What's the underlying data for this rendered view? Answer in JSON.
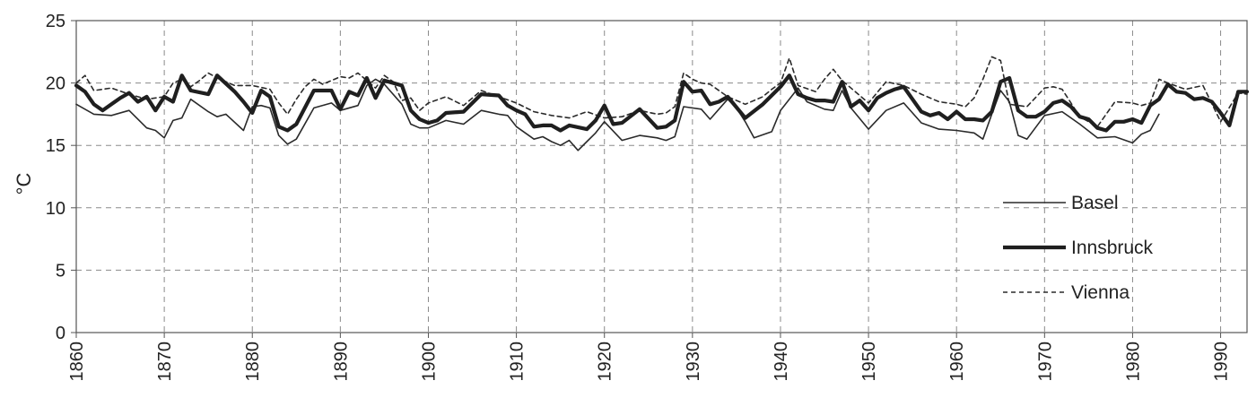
{
  "chart_data": {
    "type": "line",
    "ylabel": "°C",
    "xlabel": "",
    "xlim": [
      1860,
      1993
    ],
    "ylim": [
      0,
      25
    ],
    "yticks": [
      0,
      5,
      10,
      15,
      20,
      25
    ],
    "xticks": [
      1860,
      1870,
      1880,
      1890,
      1900,
      1910,
      1920,
      1930,
      1940,
      1950,
      1960,
      1970,
      1980,
      1990
    ],
    "grid": true,
    "legend_position": "right",
    "series": [
      {
        "name": "Basel",
        "style": "thin",
        "x": [
          1860,
          1862,
          1864,
          1866,
          1868,
          1869,
          1870,
          1871,
          1872,
          1873,
          1875,
          1876,
          1877,
          1879,
          1880,
          1881,
          1882,
          1883,
          1884,
          1885,
          1887,
          1889,
          1890,
          1892,
          1893,
          1894,
          1895,
          1897,
          1898,
          1899,
          1900,
          1902,
          1904,
          1906,
          1908,
          1909,
          1910,
          1912,
          1913,
          1914,
          1915,
          1916,
          1917,
          1918,
          1919,
          1920,
          1922,
          1924,
          1926,
          1927,
          1928,
          1929,
          1931,
          1932,
          1934,
          1935,
          1936,
          1937,
          1939,
          1940,
          1941,
          1942,
          1943,
          1945,
          1946,
          1947,
          1948,
          1950,
          1952,
          1954,
          1956,
          1958,
          1960,
          1962,
          1963,
          1964,
          1965,
          1966,
          1967,
          1968,
          1970,
          1972,
          1974,
          1976,
          1978,
          1980,
          1981,
          1982,
          1983
        ],
        "values": [
          18.3,
          17.5,
          17.4,
          17.8,
          16.4,
          16.2,
          15.6,
          17,
          17.2,
          18.7,
          17.7,
          17.3,
          17.5,
          16.2,
          18.1,
          18.2,
          18,
          15.8,
          15.1,
          15.5,
          18,
          18.4,
          17.8,
          18.2,
          19.8,
          20.3,
          19.9,
          18.3,
          16.7,
          16.4,
          16.4,
          17,
          16.7,
          17.8,
          17.5,
          17.4,
          16.5,
          15.5,
          15.7,
          15.3,
          15,
          15.4,
          14.6,
          15.3,
          16,
          16.9,
          15.4,
          15.8,
          15.6,
          15.4,
          15.7,
          18.1,
          17.9,
          17.1,
          18.7,
          18,
          16.9,
          15.6,
          16.1,
          17.8,
          18.7,
          19.6,
          18.5,
          17.9,
          17.8,
          19.4,
          18,
          16.3,
          17.8,
          18.4,
          16.8,
          16.3,
          16.2,
          16,
          15.5,
          17.5,
          19.4,
          18.5,
          15.8,
          15.5,
          17.4,
          17.7,
          16.7,
          15.6,
          15.7,
          15.2,
          15.9,
          16.2,
          17.5
        ]
      },
      {
        "name": "Innsbruck",
        "style": "thick",
        "x": [
          1860,
          1861,
          1862,
          1863,
          1865,
          1866,
          1867,
          1868,
          1869,
          1870,
          1871,
          1872,
          1873,
          1875,
          1876,
          1878,
          1879,
          1880,
          1881,
          1882,
          1883,
          1884,
          1885,
          1887,
          1888,
          1889,
          1890,
          1891,
          1892,
          1893,
          1894,
          1895,
          1897,
          1898,
          1899,
          1900,
          1901,
          1902,
          1904,
          1906,
          1908,
          1909,
          1910,
          1911,
          1912,
          1913,
          1914,
          1915,
          1916,
          1918,
          1919,
          1920,
          1921,
          1922,
          1924,
          1926,
          1927,
          1928,
          1929,
          1930,
          1931,
          1932,
          1933,
          1934,
          1936,
          1938,
          1940,
          1941,
          1942,
          1943,
          1944,
          1945,
          1946,
          1947,
          1948,
          1949,
          1950,
          1951,
          1952,
          1953,
          1954,
          1955,
          1956,
          1957,
          1958,
          1959,
          1960,
          1961,
          1962,
          1963,
          1964,
          1965,
          1966,
          1967,
          1968,
          1969,
          1970,
          1971,
          1972,
          1973,
          1974,
          1975,
          1976,
          1977,
          1978,
          1979,
          1980,
          1981,
          1982,
          1983,
          1984,
          1985,
          1986,
          1987,
          1988,
          1989,
          1990,
          1991,
          1992,
          1993
        ],
        "values": [
          19.8,
          19.3,
          18.3,
          17.8,
          18.8,
          19.2,
          18.5,
          18.9,
          17.8,
          18.9,
          18.5,
          20.6,
          19.4,
          19.1,
          20.6,
          19.3,
          18.5,
          17.6,
          19.4,
          18.9,
          16.5,
          16.2,
          16.7,
          19.4,
          19.4,
          19.4,
          17.9,
          19.3,
          19,
          20.4,
          18.8,
          20.2,
          19.8,
          17.8,
          17.1,
          16.8,
          17,
          17.6,
          17.7,
          19.1,
          19,
          18.2,
          17.8,
          17.5,
          16.5,
          16.6,
          16.6,
          16.2,
          16.6,
          16.3,
          17,
          18.2,
          16.7,
          16.8,
          17.9,
          16.4,
          16.5,
          17,
          20.1,
          19.3,
          19.4,
          18.3,
          18.5,
          18.9,
          17.2,
          18.3,
          19.7,
          20.6,
          19.1,
          18.8,
          18.6,
          18.6,
          18.5,
          20.1,
          18.1,
          18.6,
          17.8,
          18.8,
          19.2,
          19.5,
          19.7,
          18.7,
          17.7,
          17.4,
          17.6,
          17.1,
          17.7,
          17.1,
          17.1,
          17,
          17.7,
          20.1,
          20.4,
          17.8,
          17.3,
          17.3,
          17.7,
          18.4,
          18.6,
          18.1,
          17.3,
          17.1,
          16.4,
          16.2,
          16.9,
          16.9,
          17.1,
          16.8,
          18.2,
          18.7,
          19.9,
          19.3,
          19.2,
          18.7,
          18.8,
          18.5,
          17.6,
          16.6,
          19.3,
          19.3
        ]
      },
      {
        "name": "Vienna",
        "style": "dashed",
        "x": [
          1860,
          1861,
          1862,
          1864,
          1866,
          1868,
          1870,
          1871,
          1872,
          1873,
          1874,
          1875,
          1876,
          1878,
          1880,
          1882,
          1883,
          1884,
          1885,
          1886,
          1887,
          1888,
          1890,
          1891,
          1892,
          1893,
          1894,
          1895,
          1896,
          1897,
          1898,
          1899,
          1900,
          1902,
          1904,
          1906,
          1908,
          1910,
          1912,
          1914,
          1916,
          1918,
          1920,
          1922,
          1924,
          1926,
          1927,
          1928,
          1929,
          1930,
          1931,
          1932,
          1934,
          1936,
          1938,
          1939,
          1940,
          1941,
          1942,
          1944,
          1945,
          1946,
          1947,
          1948,
          1950,
          1952,
          1954,
          1956,
          1958,
          1960,
          1961,
          1962,
          1963,
          1964,
          1965,
          1966,
          1968,
          1970,
          1971,
          1972,
          1974,
          1976,
          1978,
          1980,
          1981,
          1982,
          1983,
          1984,
          1986,
          1988,
          1990,
          1992,
          1993
        ],
        "values": [
          20,
          20.6,
          19.4,
          19.6,
          19.1,
          18.7,
          18.9,
          20,
          20.3,
          19.7,
          20.2,
          20.8,
          20.4,
          19.8,
          19.8,
          19.5,
          18.4,
          17.5,
          18.7,
          19.7,
          20.3,
          19.9,
          20.5,
          20.4,
          20.8,
          20.2,
          19.6,
          20.6,
          20.1,
          18.6,
          18.8,
          17.8,
          18.4,
          18.9,
          18.2,
          19.4,
          18.9,
          18.4,
          17.7,
          17.4,
          17.2,
          17.7,
          17.2,
          17.3,
          17.8,
          17.5,
          17.6,
          18.1,
          20.8,
          20.3,
          20,
          19.9,
          18.9,
          18.3,
          18.9,
          19.5,
          20,
          22,
          19.8,
          19.3,
          20.3,
          21.1,
          20.2,
          19.6,
          18.4,
          20.1,
          19.8,
          19.1,
          18.5,
          18.3,
          18.1,
          18.8,
          20.3,
          22.1,
          21.8,
          18.3,
          18.1,
          19.6,
          19.7,
          19.5,
          17.3,
          16.5,
          18.5,
          18.4,
          18.2,
          18.4,
          20.3,
          20,
          19.5,
          19.8,
          16.9,
          19.2,
          19.1
        ]
      }
    ]
  }
}
